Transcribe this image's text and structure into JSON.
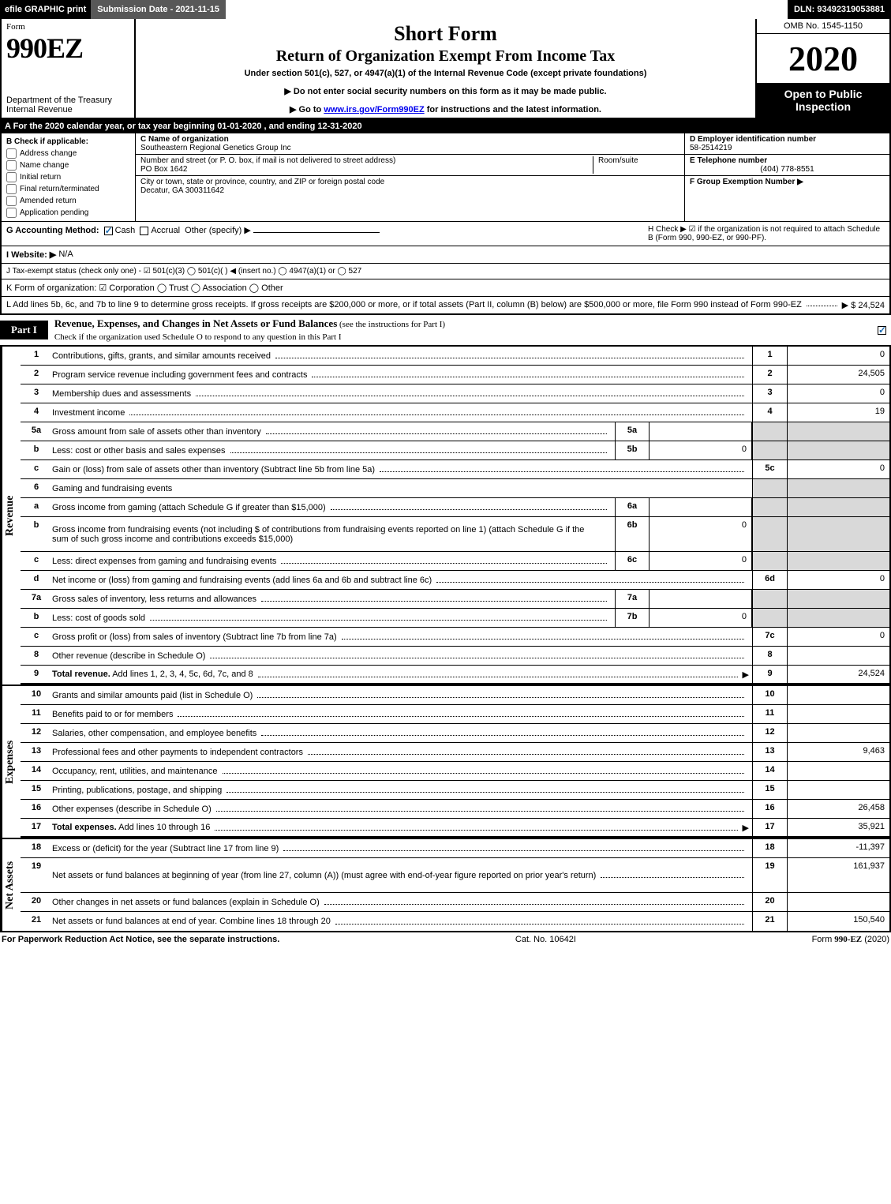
{
  "topbar": {
    "efile": "efile GRAPHIC print",
    "sub_label": "Submission Date - 2021-11-15",
    "dln": "DLN: 93492319053881"
  },
  "header": {
    "form_word": "Form",
    "form_number": "990EZ",
    "dept": "Department of the Treasury\nInternal Revenue",
    "title1": "Short Form",
    "title2": "Return of Organization Exempt From Income Tax",
    "subtitle": "Under section 501(c), 527, or 4947(a)(1) of the Internal Revenue Code (except private foundations)",
    "warn": "▶ Do not enter social security numbers on this form as it may be made public.",
    "goto_pre": "▶ Go to ",
    "goto_link": "www.irs.gov/Form990EZ",
    "goto_post": " for instructions and the latest information.",
    "omb": "OMB No. 1545-1150",
    "year": "2020",
    "opi": "Open to Public Inspection"
  },
  "lineA": "A For the 2020 calendar year, or tax year beginning 01-01-2020 , and ending 12-31-2020",
  "boxB": {
    "label": "B  Check if applicable:",
    "items": [
      "Address change",
      "Name change",
      "Initial return",
      "Final return/terminated",
      "Amended return",
      "Application pending"
    ]
  },
  "boxC": {
    "c_label": "C Name of organization",
    "c_val": "Southeastern Regional Genetics Group Inc",
    "addr_label": "Number and street (or P. O. box, if mail is not delivered to street address)",
    "addr_val": "PO Box 1642",
    "room_label": "Room/suite",
    "city_label": "City or town, state or province, country, and ZIP or foreign postal code",
    "city_val": "Decatur, GA  300311642"
  },
  "boxDEF": {
    "d_label": "D Employer identification number",
    "d_val": "58-2514219",
    "e_label": "E Telephone number",
    "e_val": "(404) 778-8551",
    "f_label": "F Group Exemption Number   ▶"
  },
  "rowG": {
    "text": "G Accounting Method:",
    "opts": [
      "Cash",
      "Accrual",
      "Other (specify) ▶"
    ],
    "checked": 0
  },
  "rowH": "H  Check ▶  ☑  if the organization is not required to attach Schedule B (Form 990, 990-EZ, or 990-PF).",
  "rowI": {
    "label": "I Website: ▶",
    "val": "N/A"
  },
  "rowJ": "J Tax-exempt status (check only one) -  ☑ 501(c)(3)  ◯ 501(c)(  ) ◀ (insert no.)  ◯ 4947(a)(1) or  ◯ 527",
  "rowK": "K Form of organization:   ☑ Corporation   ◯ Trust   ◯ Association   ◯ Other",
  "rowL": {
    "text": "L Add lines 5b, 6c, and 7b to line 9 to determine gross receipts. If gross receipts are $200,000 or more, or if total assets (Part II, column (B) below) are $500,000 or more, file Form 990 instead of Form 990-EZ",
    "amount": "▶ $ 24,524"
  },
  "part1": {
    "tag": "Part I",
    "title": "Revenue, Expenses, and Changes in Net Assets or Fund Balances",
    "title_suffix": " (see the instructions for Part I)",
    "subline": "Check if the organization used Schedule O to respond to any question in this Part I"
  },
  "sections": {
    "revenue_label": "Revenue",
    "expenses_label": "Expenses",
    "netassets_label": "Net Assets"
  },
  "lines": [
    {
      "sec": "rev",
      "n": "1",
      "d": "Contributions, gifts, grants, and similar amounts received",
      "r": "1",
      "v": "0"
    },
    {
      "sec": "rev",
      "n": "2",
      "d": "Program service revenue including government fees and contracts",
      "r": "2",
      "v": "24,505"
    },
    {
      "sec": "rev",
      "n": "3",
      "d": "Membership dues and assessments",
      "r": "3",
      "v": "0"
    },
    {
      "sec": "rev",
      "n": "4",
      "d": "Investment income",
      "r": "4",
      "v": "19"
    },
    {
      "sec": "rev",
      "n": "5a",
      "d": "Gross amount from sale of assets other than inventory",
      "m": "5a",
      "mv": "",
      "shadeR": true
    },
    {
      "sec": "rev",
      "n": "b",
      "d": "Less: cost or other basis and sales expenses",
      "m": "5b",
      "mv": "0",
      "shadeR": true
    },
    {
      "sec": "rev",
      "n": "c",
      "d": "Gain or (loss) from sale of assets other than inventory (Subtract line 5b from line 5a)",
      "r": "5c",
      "v": "0"
    },
    {
      "sec": "rev",
      "n": "6",
      "d": "Gaming and fundraising events",
      "nodots": true,
      "shadeR": true
    },
    {
      "sec": "rev",
      "n": "a",
      "d": "Gross income from gaming (attach Schedule G if greater than $15,000)",
      "m": "6a",
      "mv": "",
      "shadeR": true
    },
    {
      "sec": "rev",
      "n": "b",
      "d": "Gross income from fundraising events (not including $                      of contributions from fundraising events reported on line 1) (attach Schedule G if the sum of such gross income and contributions exceeds $15,000)",
      "m": "6b",
      "mv": "0",
      "shadeR": true,
      "tall": true
    },
    {
      "sec": "rev",
      "n": "c",
      "d": "Less: direct expenses from gaming and fundraising events",
      "m": "6c",
      "mv": "0",
      "shadeR": true
    },
    {
      "sec": "rev",
      "n": "d",
      "d": "Net income or (loss) from gaming and fundraising events (add lines 6a and 6b and subtract line 6c)",
      "r": "6d",
      "v": "0"
    },
    {
      "sec": "rev",
      "n": "7a",
      "d": "Gross sales of inventory, less returns and allowances",
      "m": "7a",
      "mv": "",
      "shadeR": true
    },
    {
      "sec": "rev",
      "n": "b",
      "d": "Less: cost of goods sold",
      "m": "7b",
      "mv": "0",
      "shadeR": true
    },
    {
      "sec": "rev",
      "n": "c",
      "d": "Gross profit or (loss) from sales of inventory (Subtract line 7b from line 7a)",
      "r": "7c",
      "v": "0"
    },
    {
      "sec": "rev",
      "n": "8",
      "d": "Other revenue (describe in Schedule O)",
      "r": "8",
      "v": ""
    },
    {
      "sec": "rev",
      "n": "9",
      "d": "Total revenue. Add lines 1, 2, 3, 4, 5c, 6d, 7c, and 8",
      "r": "9",
      "v": "24,524",
      "bold": true,
      "arrow": true,
      "heavy": true
    },
    {
      "sec": "exp",
      "n": "10",
      "d": "Grants and similar amounts paid (list in Schedule O)",
      "r": "10",
      "v": ""
    },
    {
      "sec": "exp",
      "n": "11",
      "d": "Benefits paid to or for members",
      "r": "11",
      "v": ""
    },
    {
      "sec": "exp",
      "n": "12",
      "d": "Salaries, other compensation, and employee benefits",
      "r": "12",
      "v": ""
    },
    {
      "sec": "exp",
      "n": "13",
      "d": "Professional fees and other payments to independent contractors",
      "r": "13",
      "v": "9,463"
    },
    {
      "sec": "exp",
      "n": "14",
      "d": "Occupancy, rent, utilities, and maintenance",
      "r": "14",
      "v": ""
    },
    {
      "sec": "exp",
      "n": "15",
      "d": "Printing, publications, postage, and shipping",
      "r": "15",
      "v": ""
    },
    {
      "sec": "exp",
      "n": "16",
      "d": "Other expenses (describe in Schedule O)",
      "r": "16",
      "v": "26,458"
    },
    {
      "sec": "exp",
      "n": "17",
      "d": "Total expenses. Add lines 10 through 16",
      "r": "17",
      "v": "35,921",
      "bold": true,
      "arrow": true,
      "heavy": true
    },
    {
      "sec": "net",
      "n": "18",
      "d": "Excess or (deficit) for the year (Subtract line 17 from line 9)",
      "r": "18",
      "v": "-11,397"
    },
    {
      "sec": "net",
      "n": "19",
      "d": "Net assets or fund balances at beginning of year (from line 27, column (A)) (must agree with end-of-year figure reported on prior year's return)",
      "r": "19",
      "v": "161,937",
      "tall": true
    },
    {
      "sec": "net",
      "n": "20",
      "d": "Other changes in net assets or fund balances (explain in Schedule O)",
      "r": "20",
      "v": ""
    },
    {
      "sec": "net",
      "n": "21",
      "d": "Net assets or fund balances at end of year. Combine lines 18 through 20",
      "r": "21",
      "v": "150,540",
      "arrow": false
    }
  ],
  "footer": {
    "left": "For Paperwork Reduction Act Notice, see the separate instructions.",
    "mid": "Cat. No. 10642I",
    "right_pre": "Form ",
    "right_bold": "990-EZ",
    "right_post": " (2020)"
  },
  "colors": {
    "shade": "#d9d9d9",
    "check_blue": "#1f6db3"
  }
}
